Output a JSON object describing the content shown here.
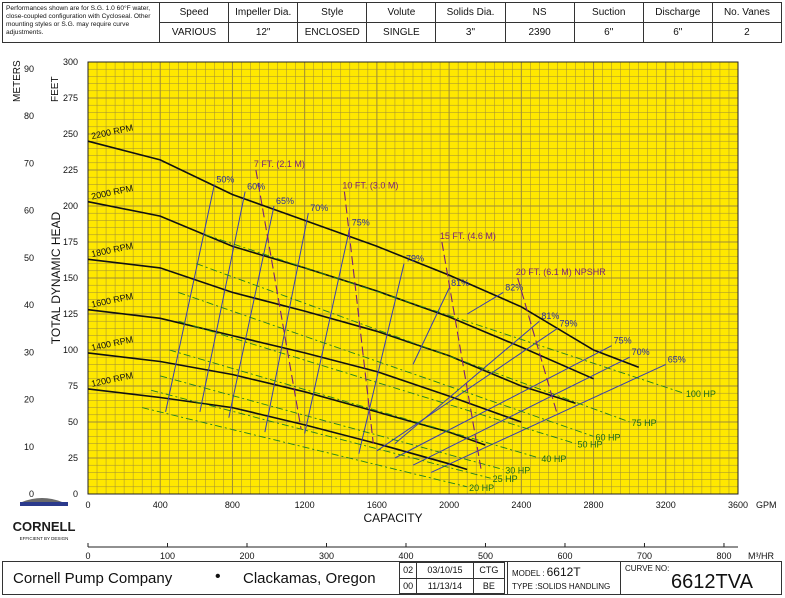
{
  "header": {
    "note": "Performances shown are for S.G. 1.0 60°F water, close-coupled configuration with Cycloseal. Other mounting styles or S.G. may require curve adjustments.",
    "columns": [
      "Speed",
      "Impeller Dia.",
      "Style",
      "Volute",
      "Solids Dia.",
      "NS",
      "Suction",
      "Discharge",
      "No. Vanes"
    ],
    "values": [
      "VARIOUS",
      "12\"",
      "ENCLOSED",
      "SINGLE",
      "3\"",
      "2390",
      "6\"",
      "6\"",
      "2"
    ]
  },
  "chart_data": {
    "type": "line",
    "xlabel": "CAPACITY",
    "xunit": "GPM",
    "x2unit": "M³/HR",
    "ylabel": "TOTAL DYNAMIC HEAD",
    "yunit": "FEET",
    "y2unit": "METERS",
    "xlim": [
      0,
      3600
    ],
    "ylim": [
      0,
      300
    ],
    "x_ticks": [
      0,
      400,
      800,
      1200,
      1600,
      2000,
      2400,
      2800,
      3200,
      3600
    ],
    "y_ticks": [
      0,
      25,
      50,
      75,
      100,
      125,
      150,
      175,
      200,
      225,
      250,
      275,
      300
    ],
    "m3hr_ticks": [
      0,
      100,
      200,
      300,
      400,
      500,
      600,
      700,
      800
    ],
    "meter_ticks": [
      0,
      10,
      20,
      30,
      40,
      50,
      60,
      70,
      80,
      90
    ],
    "grid": true,
    "speed_curves": [
      {
        "name": "2200 RPM",
        "x": [
          0,
          400,
          800,
          1200,
          1600,
          2000,
          2400,
          2800,
          3050
        ],
        "y": [
          245,
          232,
          208,
          190,
          172,
          152,
          130,
          100,
          88
        ]
      },
      {
        "name": "2000 RPM",
        "x": [
          0,
          400,
          800,
          1200,
          1600,
          2000,
          2400,
          2800
        ],
        "y": [
          203,
          193,
          172,
          157,
          141,
          123,
          102,
          80
        ]
      },
      {
        "name": "1800 RPM",
        "x": [
          0,
          400,
          800,
          1200,
          1600,
          2000,
          2400,
          2700
        ],
        "y": [
          163,
          157,
          140,
          127,
          113,
          96,
          75,
          63
        ]
      },
      {
        "name": "1600 RPM",
        "x": [
          0,
          400,
          800,
          1200,
          1600,
          2000,
          2400
        ],
        "y": [
          128,
          122,
          110,
          98,
          85,
          68,
          50
        ]
      },
      {
        "name": "1400 RPM",
        "x": [
          0,
          400,
          800,
          1200,
          1600,
          2000,
          2200
        ],
        "y": [
          98,
          92,
          83,
          71,
          57,
          43,
          34
        ]
      },
      {
        "name": "1200 RPM",
        "x": [
          0,
          400,
          800,
          1200,
          1600,
          2000,
          2100
        ],
        "y": [
          73,
          67,
          60,
          48,
          35,
          21,
          17
        ]
      }
    ],
    "efficiency_curves": [
      {
        "name": "50%",
        "x": [
          430,
          700
        ],
        "y": [
          57,
          215
        ]
      },
      {
        "name": "60%",
        "x": [
          620,
          870
        ],
        "y": [
          57,
          210
        ]
      },
      {
        "name": "65%",
        "x": [
          780,
          1030
        ],
        "y": [
          53,
          200
        ]
      },
      {
        "name": "70%",
        "x": [
          980,
          1220
        ],
        "y": [
          43,
          195
        ]
      },
      {
        "name": "75%",
        "x": [
          1200,
          1450
        ],
        "y": [
          42,
          185
        ]
      },
      {
        "name": "79%",
        "x": [
          1500,
          1750
        ],
        "y": [
          28,
          160
        ]
      },
      {
        "name": "81%",
        "x": [
          1800,
          2000
        ],
        "y": [
          90,
          143
        ]
      },
      {
        "name": "82%",
        "x": [
          2100,
          2300
        ],
        "y": [
          125,
          140
        ]
      },
      {
        "name": "81%",
        "x": [
          1700,
          2500
        ],
        "y": [
          35,
          120
        ]
      },
      {
        "name": "79%",
        "x": [
          1600,
          2600
        ],
        "y": [
          30,
          115
        ]
      },
      {
        "name": "75%",
        "x": [
          1700,
          2900
        ],
        "y": [
          25,
          103
        ]
      },
      {
        "name": "70%",
        "x": [
          1800,
          3000
        ],
        "y": [
          20,
          95
        ]
      },
      {
        "name": "65%",
        "x": [
          1900,
          3200
        ],
        "y": [
          15,
          90
        ]
      }
    ],
    "horsepower_lines": [
      {
        "name": "100 HP",
        "x": [
          650,
          3300
        ],
        "y": [
          180,
          70
        ]
      },
      {
        "name": "75 HP",
        "x": [
          600,
          3000
        ],
        "y": [
          160,
          50
        ]
      },
      {
        "name": "60 HP",
        "x": [
          500,
          2800
        ],
        "y": [
          140,
          40
        ]
      },
      {
        "name": "50 HP",
        "x": [
          500,
          2700
        ],
        "y": [
          120,
          35
        ]
      },
      {
        "name": "40 HP",
        "x": [
          450,
          2500
        ],
        "y": [
          100,
          25
        ]
      },
      {
        "name": "30 HP",
        "x": [
          400,
          2300
        ],
        "y": [
          82,
          17
        ]
      },
      {
        "name": "25 HP",
        "x": [
          350,
          2230
        ],
        "y": [
          72,
          11
        ]
      },
      {
        "name": "20 HP",
        "x": [
          300,
          2100
        ],
        "y": [
          60,
          5
        ]
      }
    ],
    "npshr_lines": [
      {
        "name": "7 FT. (2.1 M)",
        "x": [
          930,
          1180
        ],
        "y": [
          225,
          45
        ]
      },
      {
        "name": "10 FT. (3.0 M)",
        "x": [
          1420,
          1580
        ],
        "y": [
          210,
          35
        ]
      },
      {
        "name": "15 FT. (4.6 M)",
        "x": [
          1960,
          2180
        ],
        "y": [
          175,
          15
        ]
      },
      {
        "name": "20 FT. (6.1 M) NPSHR",
        "x": [
          2380,
          2600
        ],
        "y": [
          150,
          55
        ]
      }
    ]
  },
  "logo": {
    "name": "CORNELL",
    "tagline": "EFFICIENT BY DESIGN"
  },
  "footer": {
    "company": "Cornell Pump Company",
    "separator": "•",
    "city": "Clackamas, Oregon",
    "revisions": [
      [
        "02",
        "03/10/15",
        "CTG"
      ],
      [
        "00",
        "11/13/14",
        "BE"
      ]
    ],
    "model_label": "MODEL :",
    "model": "6612T",
    "type_label": "TYPE :SOLIDS HANDLING",
    "curve_label": "CURVE NO:",
    "curve_no": "6612TVA"
  }
}
